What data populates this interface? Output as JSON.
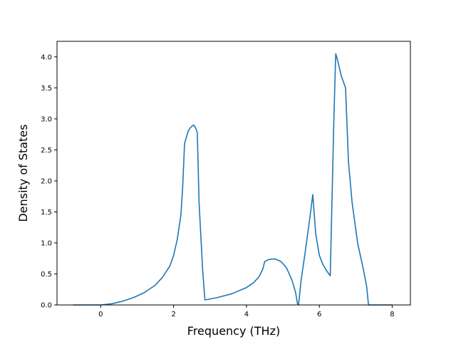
{
  "chart_data": {
    "type": "line",
    "title": "",
    "xlabel": "Frequency (THz)",
    "ylabel": "Density of States",
    "xlim": [
      -1.2,
      8.5
    ],
    "ylim": [
      0.0,
      4.25
    ],
    "xticks": [
      0,
      2,
      4,
      6,
      8
    ],
    "xtick_labels": [
      "0",
      "2",
      "4",
      "6",
      "8"
    ],
    "yticks": [
      0.0,
      0.5,
      1.0,
      1.5,
      2.0,
      2.5,
      3.0,
      3.5,
      4.0
    ],
    "ytick_labels": [
      "0.0",
      "0.5",
      "1.0",
      "1.5",
      "2.0",
      "2.5",
      "3.0",
      "3.5",
      "4.0"
    ],
    "grid": false,
    "legend": "none",
    "series": [
      {
        "color": "#1f77b4",
        "x": [
          -0.75,
          -0.5,
          0.0,
          0.3,
          0.6,
          0.9,
          1.2,
          1.5,
          1.7,
          1.9,
          2.0,
          2.1,
          2.2,
          2.25,
          2.3,
          2.35,
          2.4,
          2.45,
          2.5,
          2.55,
          2.6,
          2.65,
          2.7,
          2.8,
          2.86,
          3.2,
          3.6,
          4.0,
          4.2,
          4.35,
          4.45,
          4.5,
          4.6,
          4.7,
          4.8,
          4.95,
          5.1,
          5.25,
          5.35,
          5.4,
          5.43,
          5.5,
          5.6,
          5.75,
          5.82,
          5.9,
          6.0,
          6.1,
          6.2,
          6.3,
          6.4,
          6.45,
          6.5,
          6.6,
          6.72,
          6.8,
          6.9,
          7.05,
          7.2,
          7.3,
          7.35,
          7.6,
          8.0
        ],
        "y": [
          0.0,
          0.0,
          0.0,
          0.02,
          0.06,
          0.12,
          0.2,
          0.32,
          0.45,
          0.63,
          0.8,
          1.05,
          1.45,
          1.9,
          2.6,
          2.7,
          2.8,
          2.85,
          2.88,
          2.9,
          2.86,
          2.78,
          1.65,
          0.55,
          0.08,
          0.12,
          0.18,
          0.28,
          0.36,
          0.46,
          0.58,
          0.7,
          0.73,
          0.74,
          0.74,
          0.7,
          0.6,
          0.4,
          0.2,
          0.02,
          0.0,
          0.4,
          0.8,
          1.45,
          1.78,
          1.15,
          0.8,
          0.65,
          0.55,
          0.47,
          3.0,
          4.05,
          3.95,
          3.7,
          3.5,
          2.3,
          1.65,
          1.0,
          0.6,
          0.3,
          0.0,
          0.0,
          0.0
        ]
      }
    ]
  }
}
